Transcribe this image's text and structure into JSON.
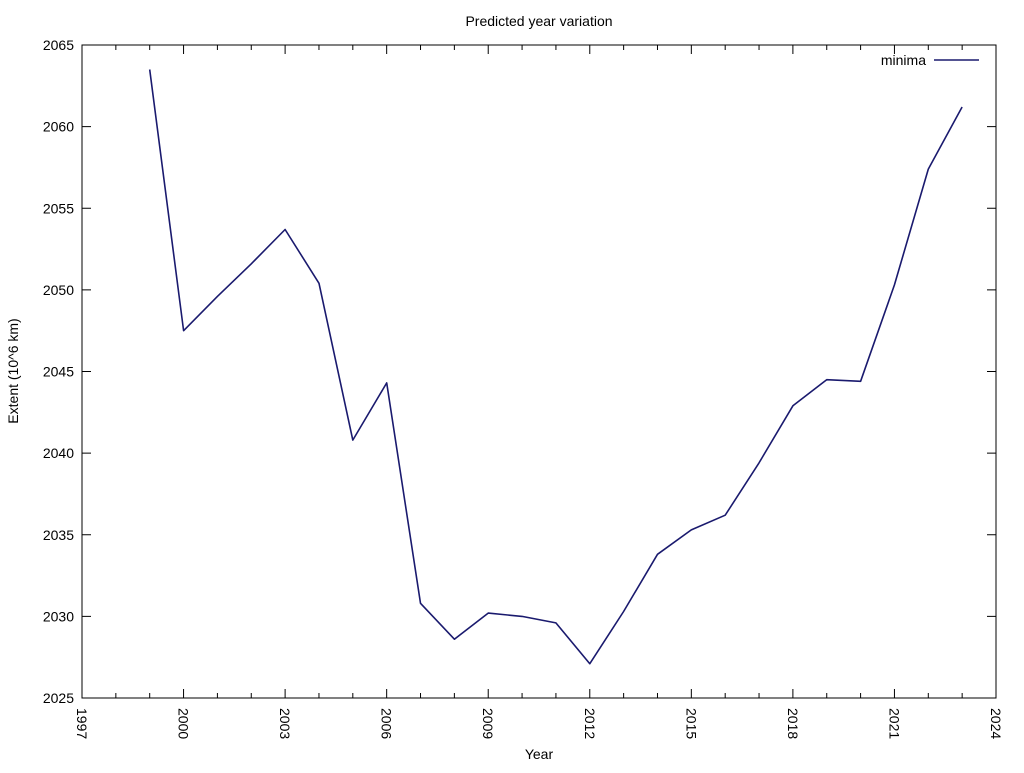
{
  "chart_data": {
    "type": "line",
    "title": "Predicted year variation",
    "xlabel": "Year",
    "ylabel": "Extent (10^6 km)",
    "xlim": [
      1997,
      2024
    ],
    "ylim": [
      2025,
      2065
    ],
    "xticks": [
      1997,
      2000,
      2003,
      2006,
      2009,
      2012,
      2015,
      2018,
      2021,
      2024
    ],
    "yticks": [
      2025,
      2030,
      2035,
      2040,
      2045,
      2050,
      2055,
      2060,
      2065
    ],
    "grid": false,
    "legend_position": "top-right",
    "series": [
      {
        "name": "minima",
        "color": "#1a1a6e",
        "x": [
          1999,
          2000,
          2001,
          2002,
          2003,
          2004,
          2005,
          2006,
          2007,
          2008,
          2009,
          2010,
          2011,
          2012,
          2013,
          2014,
          2015,
          2016,
          2017,
          2018,
          2019,
          2020,
          2021,
          2022,
          2023
        ],
        "y": [
          2063.5,
          2047.5,
          2049.6,
          2051.6,
          2053.7,
          2050.4,
          2040.8,
          2044.3,
          2030.8,
          2028.6,
          2030.2,
          2030.0,
          2029.6,
          2027.1,
          2030.3,
          2033.8,
          2035.3,
          2036.2,
          2039.4,
          2042.9,
          2044.5,
          2044.4,
          2050.3,
          2057.4,
          2061.2
        ]
      }
    ]
  }
}
